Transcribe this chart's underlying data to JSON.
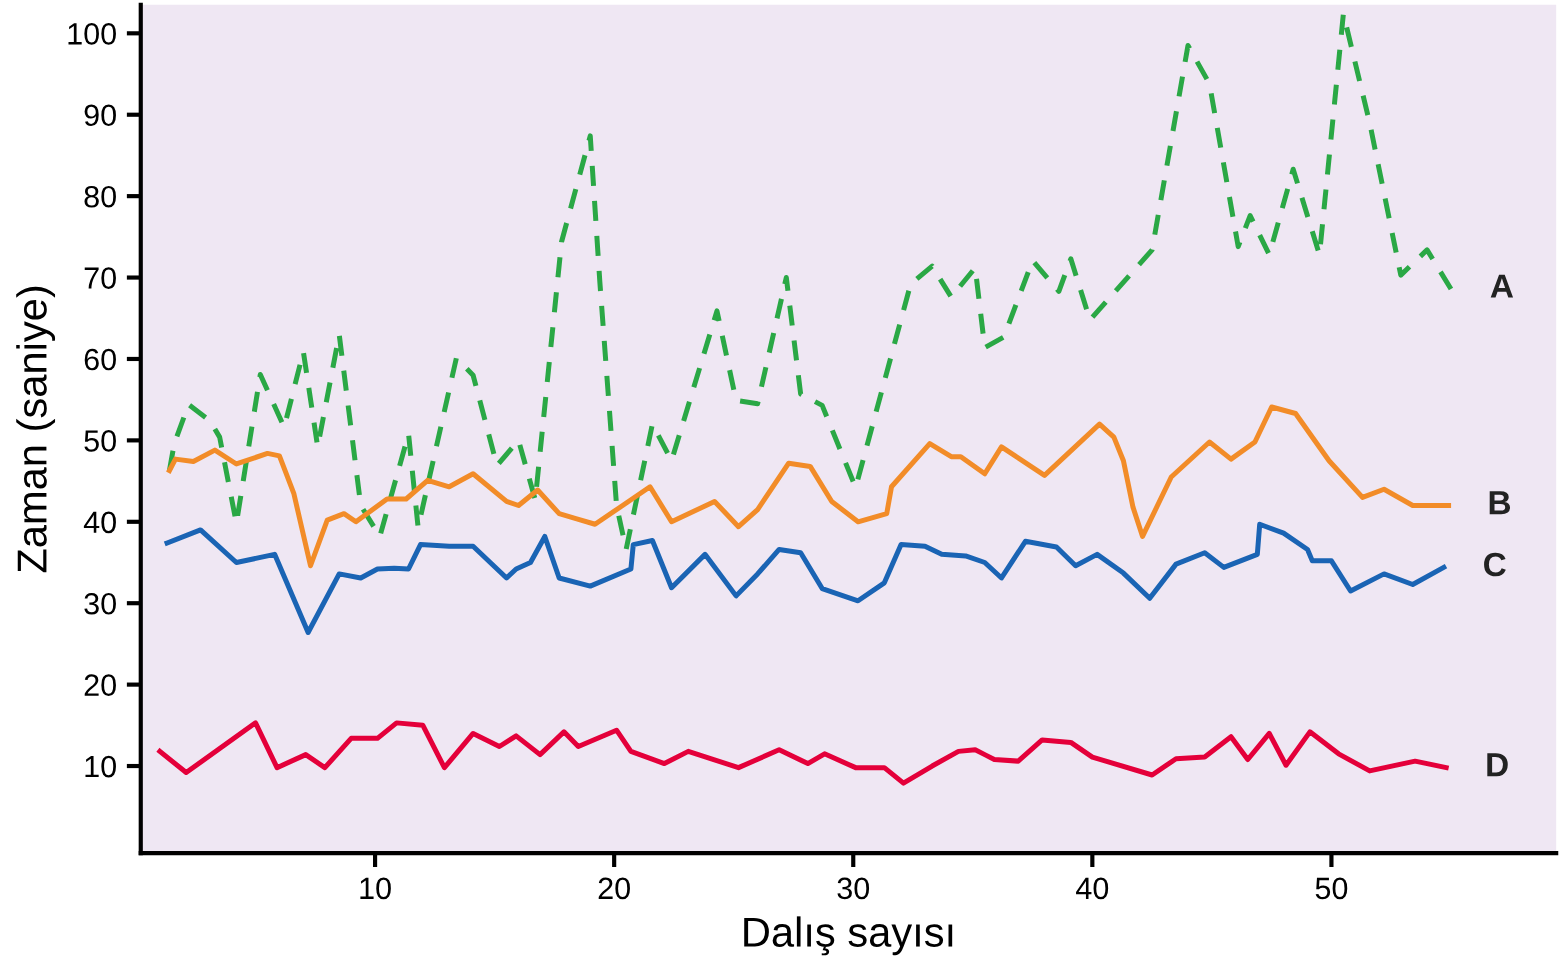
{
  "chart_data": {
    "type": "line",
    "xlabel": "Dalış sayısı",
    "ylabel": "Zaman (saniye)",
    "xlim": [
      0.2,
      59.4
    ],
    "ylim": [
      -0.7,
      103.5
    ],
    "xticks": [
      10,
      20,
      30,
      40,
      50
    ],
    "yticks": [
      10,
      20,
      30,
      40,
      50,
      60,
      70,
      80,
      90,
      100
    ],
    "grid": false,
    "legend": false,
    "series": [
      {
        "name": "A",
        "color": "#2aa845",
        "line_style": "dashed",
        "x": [
          1.4,
          1.6,
          2.2,
          3.1,
          3.5,
          4.2,
          5.2,
          6.2,
          7.0,
          7.6,
          8.5,
          9.4,
          10.2,
          11.4,
          11.8,
          13.4,
          14.1,
          15.1,
          16.0,
          16.7,
          17.8,
          19.0,
          19.4,
          20.1,
          20.5,
          21.6,
          22.4,
          24.3,
          25.1,
          26.0,
          27.2,
          27.8,
          28.7,
          30.1,
          32.4,
          33.3,
          34.1,
          35.1,
          35.5,
          36.3,
          37.5,
          38.6,
          39.1,
          39.9,
          42.5,
          44.0,
          44.9,
          46.1,
          46.6,
          47.4,
          48.4,
          49.5,
          50.5,
          51.6,
          52.9,
          54.0,
          55.0
        ],
        "values": [
          46.3,
          49.6,
          54.4,
          52.4,
          50.4,
          39.8,
          58.1,
          51.6,
          60.9,
          49.2,
          63.0,
          42.0,
          38.2,
          50.8,
          39.3,
          60.1,
          58.0,
          46.9,
          50.0,
          42.7,
          74.4,
          87.4,
          69.5,
          42.0,
          36.6,
          52.0,
          47.5,
          65.9,
          54.9,
          54.5,
          70.0,
          55.7,
          54.3,
          44.2,
          69.2,
          71.4,
          67.6,
          71.2,
          61.4,
          62.7,
          72.1,
          68.3,
          72.3,
          64.8,
          73.4,
          98.5,
          93.8,
          73.8,
          77.6,
          72.8,
          83.3,
          72.8,
          102.4,
          89.0,
          70.3,
          73.4,
          68.6
        ]
      },
      {
        "name": "B",
        "color": "#f28c28",
        "line_style": "solid",
        "x": [
          1.4,
          1.65,
          2.4,
          3.3,
          4.2,
          5.5,
          6.0,
          6.6,
          7.3,
          8.0,
          8.7,
          9.2,
          10.5,
          11.3,
          12.2,
          13.1,
          14.1,
          15.5,
          16.0,
          16.8,
          17.7,
          18.4,
          19.2,
          20.2,
          21.5,
          22.4,
          24.2,
          25.2,
          26.0,
          27.3,
          28.2,
          29.1,
          30.2,
          31.4,
          31.6,
          33.2,
          34.1,
          34.5,
          35.5,
          36.2,
          38.0,
          40.3,
          40.9,
          41.3,
          41.7,
          42.1,
          43.3,
          44.9,
          45.8,
          46.8,
          47.5,
          48.5,
          49.9,
          51.3,
          52.2,
          53.4,
          54.9
        ],
        "values": [
          46.3,
          47.7,
          47.4,
          48.8,
          47.1,
          48.4,
          48.1,
          43.5,
          34.6,
          40.2,
          41.0,
          40.0,
          42.8,
          42.8,
          45.1,
          44.3,
          45.9,
          42.5,
          42.0,
          43.9,
          41.0,
          40.4,
          39.7,
          41.7,
          44.3,
          40.0,
          42.5,
          39.4,
          41.5,
          47.2,
          46.8,
          42.5,
          40.0,
          41.0,
          44.3,
          49.6,
          48.0,
          48.0,
          45.9,
          49.2,
          45.7,
          52.0,
          50.4,
          47.5,
          41.8,
          38.2,
          45.5,
          49.8,
          47.7,
          49.8,
          54.1,
          53.3,
          47.5,
          43.0,
          44.0,
          42.0,
          42.0
        ]
      },
      {
        "name": "C",
        "color": "#1a64b4",
        "line_style": "solid",
        "x": [
          1.3,
          2.7,
          4.2,
          5.8,
          7.2,
          8.5,
          9.4,
          10.1,
          10.8,
          11.4,
          11.9,
          13.1,
          14.1,
          15.5,
          15.9,
          16.5,
          17.1,
          17.7,
          19.0,
          20.7,
          20.8,
          21.6,
          22.4,
          23.8,
          25.1,
          26.0,
          26.9,
          27.8,
          28.7,
          30.2,
          31.3,
          32.0,
          33.0,
          33.7,
          34.7,
          35.5,
          36.2,
          37.2,
          38.5,
          39.3,
          40.2,
          41.3,
          42.4,
          43.5,
          44.7,
          45.5,
          46.9,
          47.0,
          48.0,
          49.0,
          49.2,
          50.0,
          50.8,
          52.2,
          53.4,
          54.7
        ],
        "values": [
          37.4,
          39.0,
          35.0,
          36.0,
          26.4,
          33.6,
          33.1,
          34.2,
          34.3,
          34.2,
          37.2,
          37.0,
          37.0,
          33.1,
          34.2,
          35.0,
          38.2,
          33.1,
          32.1,
          34.2,
          37.2,
          37.7,
          31.9,
          36.0,
          30.9,
          33.6,
          36.6,
          36.2,
          31.8,
          30.3,
          32.5,
          37.2,
          37.0,
          36.0,
          35.8,
          35.0,
          33.1,
          37.6,
          36.9,
          34.6,
          36.0,
          33.7,
          30.6,
          34.8,
          36.2,
          34.4,
          36.0,
          39.7,
          38.6,
          36.6,
          35.2,
          35.2,
          31.5,
          33.6,
          32.3,
          34.4
        ]
      },
      {
        "name": "D",
        "color": "#e4003a",
        "line_style": "solid",
        "x": [
          1.0,
          2.1,
          5.0,
          5.9,
          7.1,
          7.9,
          9.0,
          10.1,
          10.9,
          12.0,
          12.9,
          14.1,
          15.2,
          15.9,
          16.9,
          17.9,
          18.5,
          20.1,
          20.7,
          22.1,
          23.1,
          25.2,
          26.9,
          28.1,
          28.8,
          30.1,
          31.3,
          32.1,
          33.3,
          34.4,
          35.1,
          35.5,
          35.9,
          36.9,
          37.9,
          39.1,
          40.0,
          42.5,
          43.5,
          44.7,
          45.8,
          46.5,
          47.4,
          48.1,
          49.1,
          50.3,
          51.6,
          53.5,
          54.8
        ],
        "values": [
          11.8,
          9.2,
          15.3,
          9.8,
          11.4,
          9.8,
          13.4,
          13.4,
          15.3,
          15.0,
          9.8,
          14.0,
          12.4,
          13.7,
          11.4,
          14.2,
          12.4,
          14.4,
          11.8,
          10.3,
          11.8,
          9.8,
          12.0,
          10.3,
          11.5,
          9.8,
          9.8,
          7.9,
          10.0,
          11.8,
          12.0,
          11.4,
          10.8,
          10.6,
          13.2,
          12.9,
          11.1,
          8.9,
          10.9,
          11.1,
          13.6,
          10.8,
          14.0,
          10.1,
          14.2,
          11.5,
          9.4,
          10.6,
          9.8
        ]
      }
    ]
  }
}
